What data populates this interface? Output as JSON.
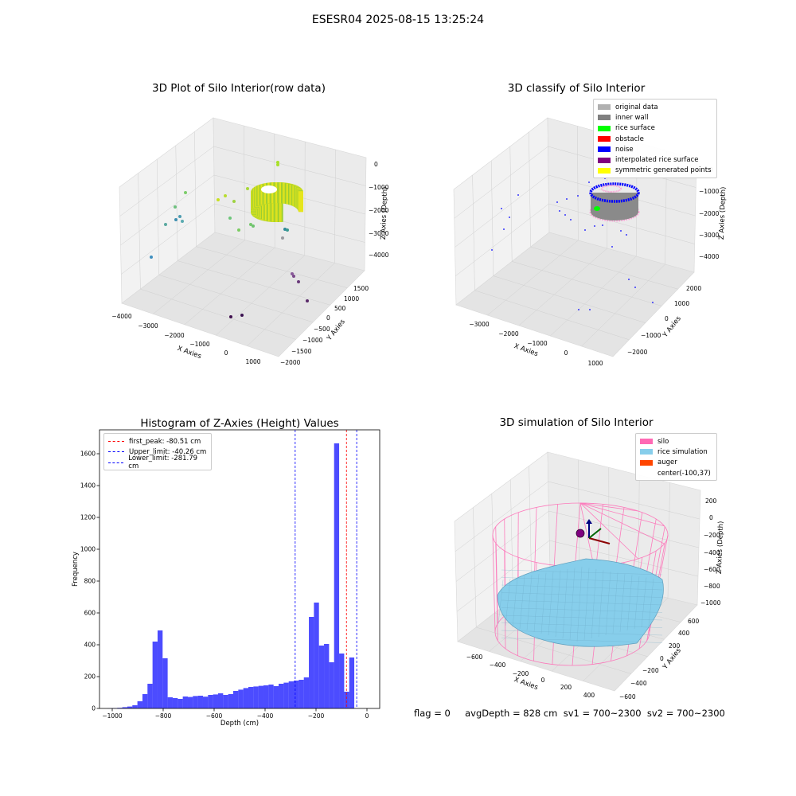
{
  "figure": {
    "suptitle": "ESESR04 2025-08-15 13:25:24",
    "status_line": "flag = 0     avgDepth = 828 cm  sv1 = 700~2300  sv2 = 700~2300"
  },
  "panels": {
    "raw": {
      "title": "3D Plot of Silo Interior(row data)",
      "xlabel": "X Axies",
      "ylabel": "Y Axies",
      "zlabel": "Z Axies (Depth)",
      "xticks": [
        "−4000",
        "−3000",
        "−2000",
        "−1000",
        "0",
        "1000"
      ],
      "yticks": [
        "−2000",
        "−1500",
        "−1000",
        "−500",
        "0",
        "500",
        "1000",
        "1500"
      ],
      "zticks": [
        "0",
        "−1000",
        "−2000",
        "−3000",
        "−4000"
      ]
    },
    "classify": {
      "title": "3D classify of Silo Interior",
      "xlabel": "X Axies",
      "ylabel": "Y Axies",
      "zlabel": "Z Axies (Depth)",
      "xticks": [
        "−3000",
        "−2000",
        "−1000",
        "0",
        "1000"
      ],
      "yticks": [
        "−2000",
        "−1000",
        "0",
        "1000",
        "2000"
      ],
      "zticks": [
        "0",
        "−1000",
        "−2000",
        "−3000",
        "−4000"
      ],
      "legend": [
        {
          "label": "original data",
          "color": "#b0b0b0"
        },
        {
          "label": "inner wall",
          "color": "#808080"
        },
        {
          "label": "rice surface",
          "color": "#00ff00"
        },
        {
          "label": "obstacle",
          "color": "#ff0000"
        },
        {
          "label": "noise",
          "color": "#0000ff"
        },
        {
          "label": "interpolated rice surface",
          "color": "#800080"
        },
        {
          "label": "symmetric generated points",
          "color": "#ffff00"
        }
      ]
    },
    "simulation": {
      "title": "3D simulation of Silo Interior",
      "xlabel": "X Axies",
      "ylabel": "Y Axies",
      "zlabel": "Z Axies (Depth)",
      "xticks": [
        "−600",
        "−400",
        "−200",
        "0",
        "200",
        "400"
      ],
      "yticks": [
        "−600",
        "−400",
        "−200",
        "0",
        "200",
        "400",
        "600"
      ],
      "zticks": [
        "200",
        "0",
        "−200",
        "−400",
        "−600",
        "−800",
        "−1000"
      ],
      "legend": [
        {
          "label": "silo",
          "color": "#ff69b4"
        },
        {
          "label": "rice simulation",
          "color": "#87ceeb"
        },
        {
          "label": "auger",
          "color": "#ff4500"
        },
        {
          "label": "center(-100,37)",
          "color": ""
        }
      ]
    }
  },
  "chart_data": [
    {
      "type": "bar",
      "title": "Histogram of Z-Axies (Height) Values",
      "xlabel": "Depth (cm)",
      "ylabel": "Frequency",
      "xlim": [
        -1050,
        50
      ],
      "ylim": [
        0,
        1750
      ],
      "xticks": [
        -1000,
        -800,
        -600,
        -400,
        -200,
        0
      ],
      "yticks": [
        0,
        200,
        400,
        600,
        800,
        1000,
        1200,
        1400,
        1600
      ],
      "bin_width": 19.8,
      "bin_starts": [
        -1020,
        -1000.2,
        -980.4,
        -960.6,
        -940.8,
        -921,
        -901.2,
        -881.4,
        -861.6,
        -841.8,
        -822,
        -802.2,
        -782.4,
        -762.6,
        -742.8,
        -723,
        -703.2,
        -683.4,
        -663.6,
        -643.8,
        -624,
        -604.2,
        -584.4,
        -564.6,
        -544.8,
        -525,
        -505.2,
        -485.4,
        -465.6,
        -445.8,
        -426,
        -406.2,
        -386.4,
        -366.6,
        -346.8,
        -327,
        -307.2,
        -287.4,
        -267.6,
        -247.8,
        -228,
        -208.2,
        -188.4,
        -168.6,
        -148.8,
        -129,
        -109.2,
        -89.4,
        -69.6,
        -49.8,
        -30,
        -10.2
      ],
      "values": [
        1,
        2,
        4,
        8,
        12,
        20,
        45,
        90,
        155,
        420,
        490,
        315,
        70,
        65,
        60,
        75,
        72,
        78,
        80,
        74,
        85,
        88,
        95,
        85,
        90,
        110,
        118,
        128,
        135,
        138,
        142,
        145,
        150,
        140,
        155,
        162,
        170,
        175,
        180,
        195,
        575,
        665,
        395,
        405,
        290,
        1665,
        345,
        105,
        320,
        0,
        0,
        0
      ],
      "color": "#0000ff",
      "lines": [
        {
          "name": "first_peak: -80.51 cm",
          "x": -80.51,
          "color": "#ff0000"
        },
        {
          "name": "Upper_limit: -40.26 cm",
          "x": -40.26,
          "color": "#0000ff"
        },
        {
          "name": "Lower_limit: -281.79 cm",
          "x": -281.79,
          "color": "#0000ff"
        }
      ],
      "legend_position": "top-left"
    }
  ]
}
